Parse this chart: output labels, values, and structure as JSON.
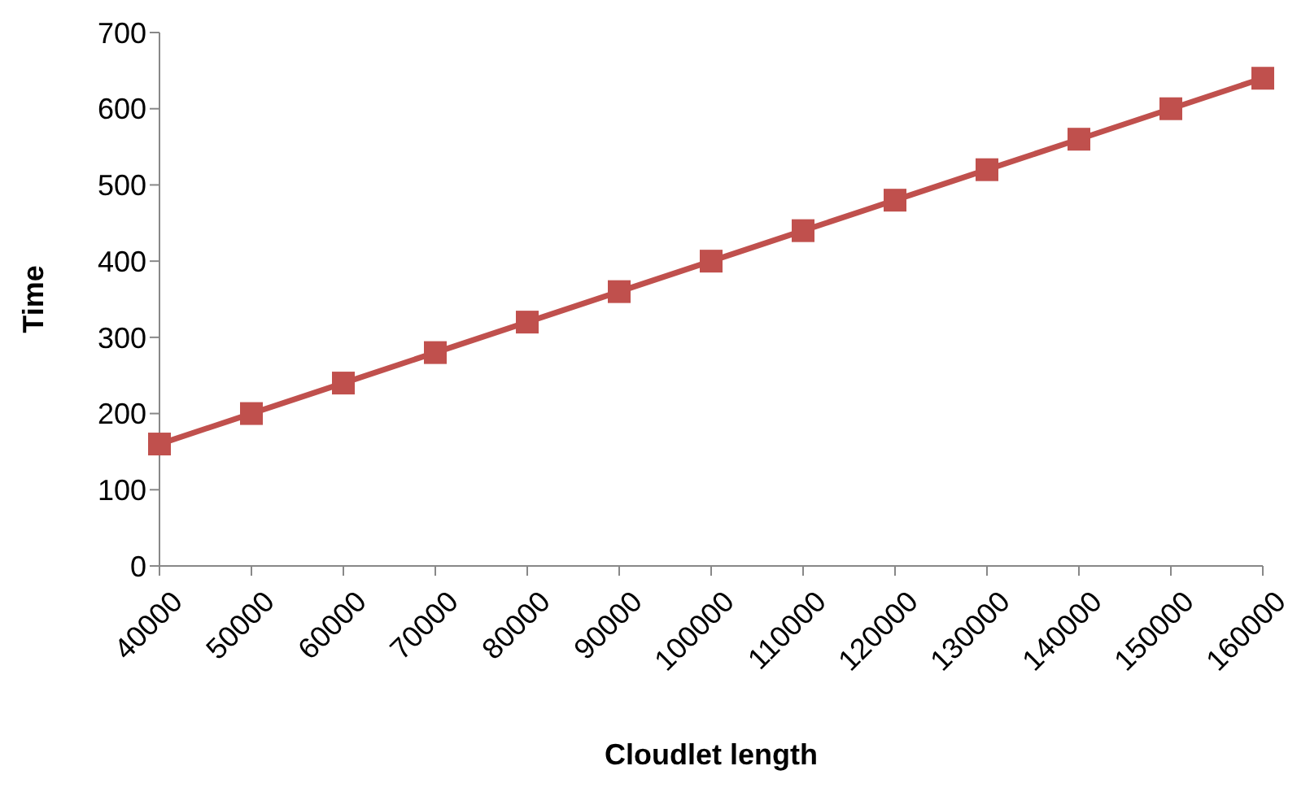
{
  "chart_data": {
    "type": "line",
    "xlabel": "Cloudlet length",
    "ylabel": "Time",
    "categories": [
      "40000",
      "50000",
      "60000",
      "70000",
      "80000",
      "90000",
      "100000",
      "110000",
      "120000",
      "130000",
      "140000",
      "150000",
      "160000"
    ],
    "series": [
      {
        "color": "#c0504d",
        "values": [
          160,
          200,
          240,
          280,
          320,
          360,
          400,
          440,
          480,
          520,
          560,
          600,
          640
        ]
      }
    ],
    "ylim": [
      0,
      700
    ],
    "yticks": [
      0,
      100,
      200,
      300,
      400,
      500,
      600,
      700
    ],
    "marker": "square",
    "line_style": "solid"
  }
}
